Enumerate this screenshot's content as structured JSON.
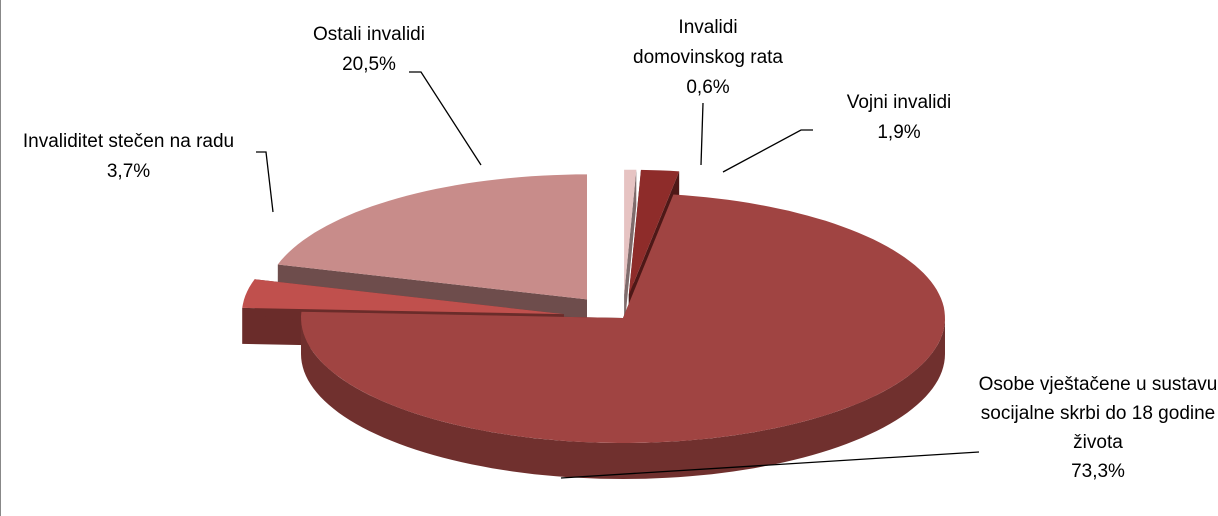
{
  "chart_data": {
    "type": "pie",
    "categories": [
      "Invalidi domovinskog rata",
      "Vojni invalidi",
      "Osobe vještačene u sustavu socijalne skrbi do 18 godine života",
      "Invaliditet stečen na radu",
      "Ostali invalidi"
    ],
    "values": [
      0.6,
      1.9,
      73.3,
      3.7,
      20.5
    ],
    "value_labels": [
      "0,6%",
      "1,9%",
      "73,3%",
      "3,7%",
      "20,5%"
    ],
    "colors": [
      "#e6c3c2",
      "#8e2c2a",
      "#a04442",
      "#c0504d",
      "#c88c8a"
    ],
    "three_d": true
  }
}
